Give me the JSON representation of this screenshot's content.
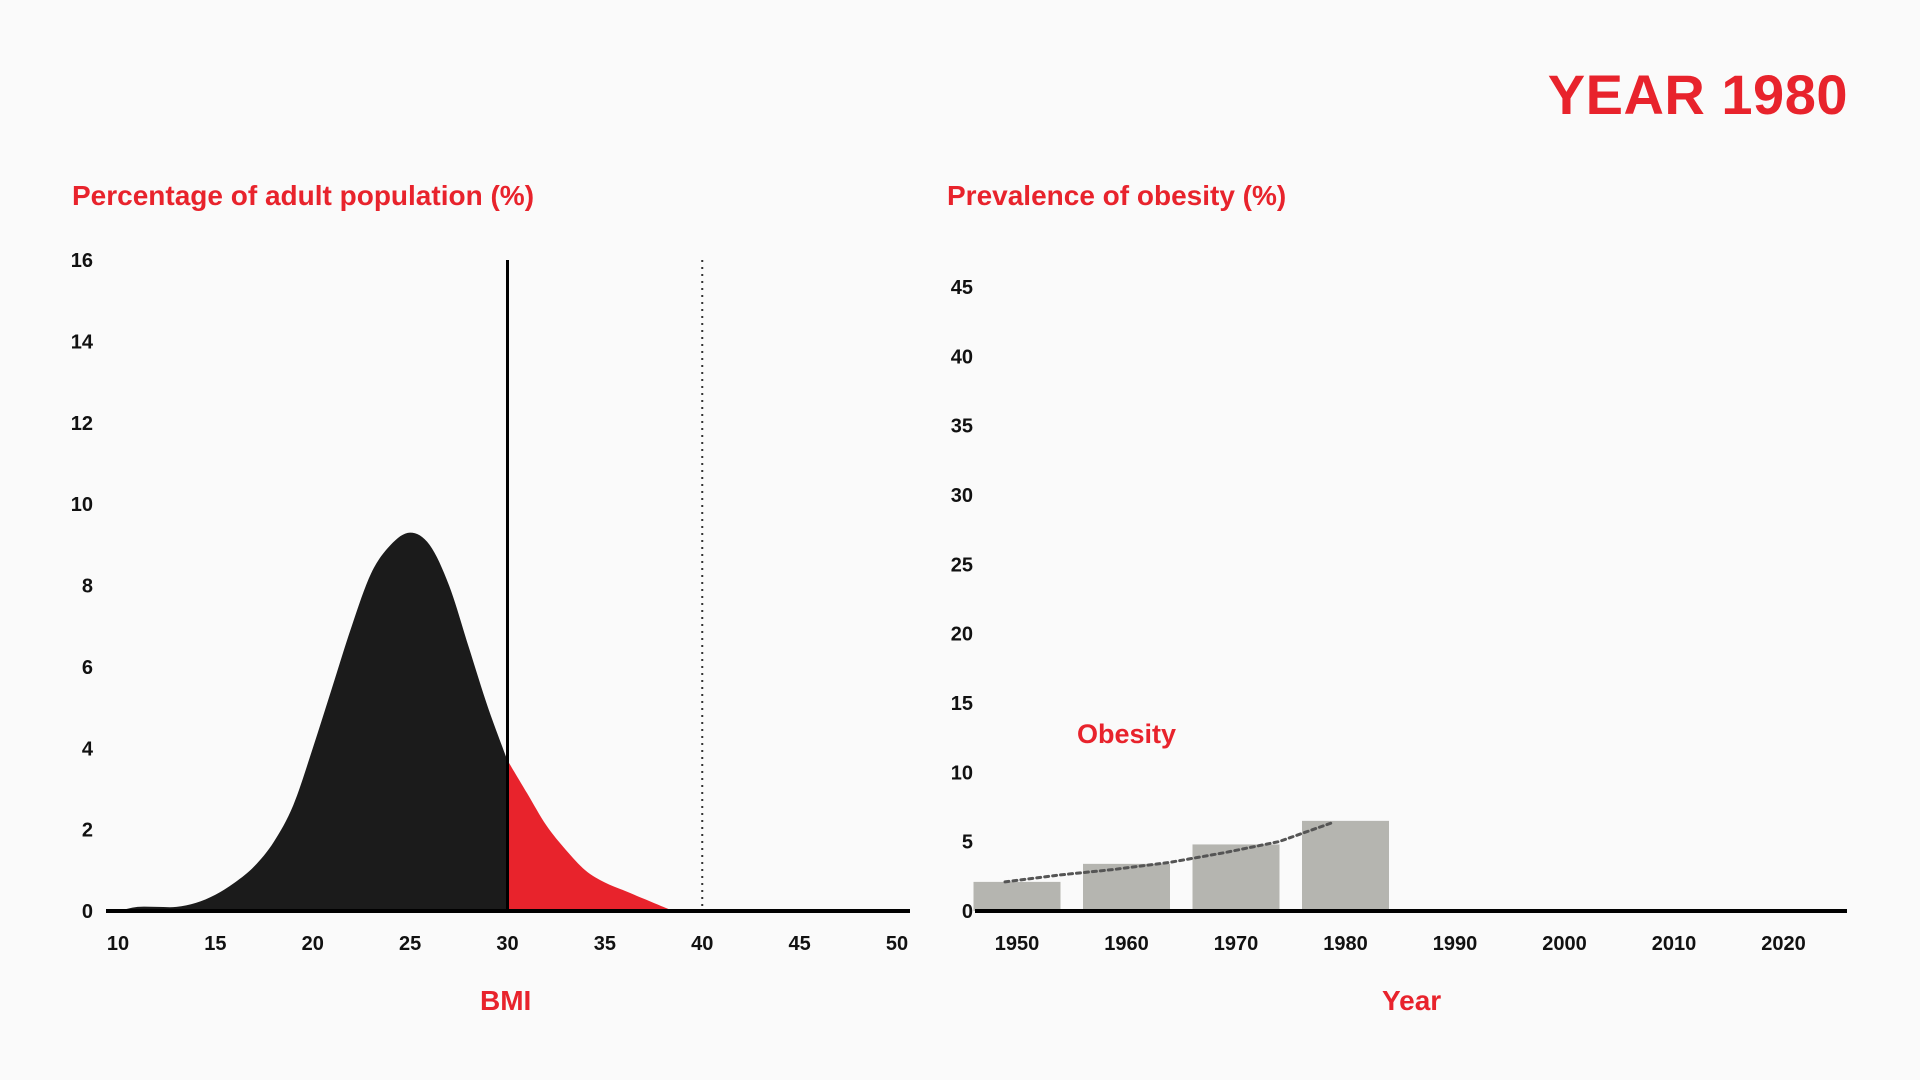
{
  "header": {
    "year_label": "YEAR 1980"
  },
  "chart_data": [
    {
      "type": "area",
      "title": "Percentage of adult population (%)",
      "xlabel": "BMI",
      "ylabel": "Percentage of adult population (%)",
      "xlim": [
        10,
        50
      ],
      "ylim": [
        0,
        16
      ],
      "x_ticks": [
        10,
        15,
        20,
        25,
        30,
        35,
        40,
        45,
        50
      ],
      "y_ticks": [
        0,
        2,
        4,
        6,
        8,
        10,
        12,
        14,
        16
      ],
      "grid": false,
      "threshold_bmi": 30,
      "reference_bmi": 40,
      "colors": {
        "normal": "#1b1b1b",
        "obese": "#e8232c"
      },
      "series": [
        {
          "x": [
            10,
            11,
            12,
            13,
            14,
            15,
            16,
            17,
            18,
            19,
            20,
            21,
            22,
            23,
            24,
            25,
            26,
            27,
            28,
            29,
            30,
            31,
            32,
            33,
            34,
            35,
            36,
            37,
            38,
            38.5
          ],
          "y": [
            0,
            0.1,
            0.1,
            0.1,
            0.2,
            0.4,
            0.7,
            1.1,
            1.7,
            2.6,
            4.0,
            5.5,
            7.0,
            8.3,
            9.0,
            9.3,
            9.0,
            8.0,
            6.5,
            5.0,
            3.7,
            2.9,
            2.1,
            1.5,
            1.0,
            0.7,
            0.5,
            0.3,
            0.1,
            0
          ]
        }
      ]
    },
    {
      "type": "bar",
      "title": "Prevalence of obesity (%)",
      "xlabel": "Year",
      "ylabel": "Prevalence of obesity (%)",
      "categories": [
        "1950",
        "1960",
        "1970",
        "1980",
        "1990",
        "2000",
        "2010",
        "2020"
      ],
      "values": [
        2.1,
        3.4,
        4.8,
        6.5,
        null,
        null,
        null,
        null
      ],
      "ylim": [
        0,
        45
      ],
      "y_ticks": [
        0,
        5,
        10,
        15,
        20,
        25,
        30,
        35,
        40,
        45
      ],
      "grid": false,
      "annotation": "Obesity",
      "trend_line": {
        "style": "dotted",
        "x": [
          1950,
          1955,
          1960,
          1965,
          1970,
          1975,
          1980
        ],
        "y": [
          2.1,
          2.6,
          3.0,
          3.5,
          4.2,
          5.0,
          6.4
        ]
      },
      "colors": {
        "bar": "#b5b5b0",
        "trend": "#555555"
      }
    }
  ]
}
